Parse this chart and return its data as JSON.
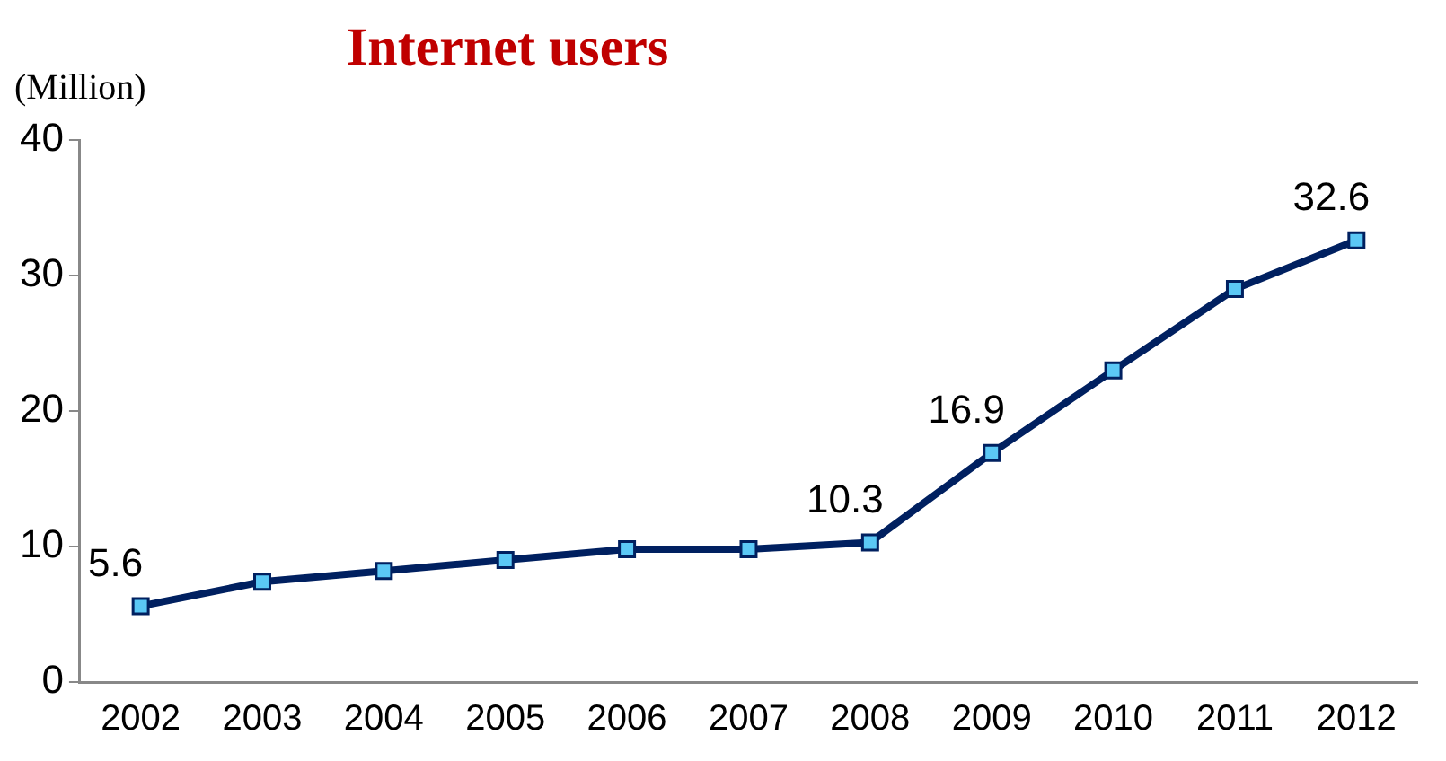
{
  "chart_data": {
    "type": "line",
    "title": "Internet users",
    "ylabel": "(Million)",
    "categories": [
      "2002",
      "2003",
      "2004",
      "2005",
      "2006",
      "2007",
      "2008",
      "2009",
      "2010",
      "2011",
      "2012"
    ],
    "series": [
      {
        "color": "#002060",
        "values": [
          5.6,
          7.4,
          8.2,
          9.0,
          9.8,
          9.8,
          10.3,
          16.9,
          23.0,
          29.0,
          32.6
        ],
        "value_labels": [
          "5.6",
          null,
          null,
          null,
          null,
          null,
          "10.3",
          "16.9",
          null,
          null,
          "32.6"
        ]
      }
    ],
    "ylim": [
      0,
      40
    ],
    "yticks": [
      0,
      10,
      20,
      30,
      40
    ],
    "grid": false,
    "legend": false,
    "marker": "square",
    "line_style": "solid"
  }
}
